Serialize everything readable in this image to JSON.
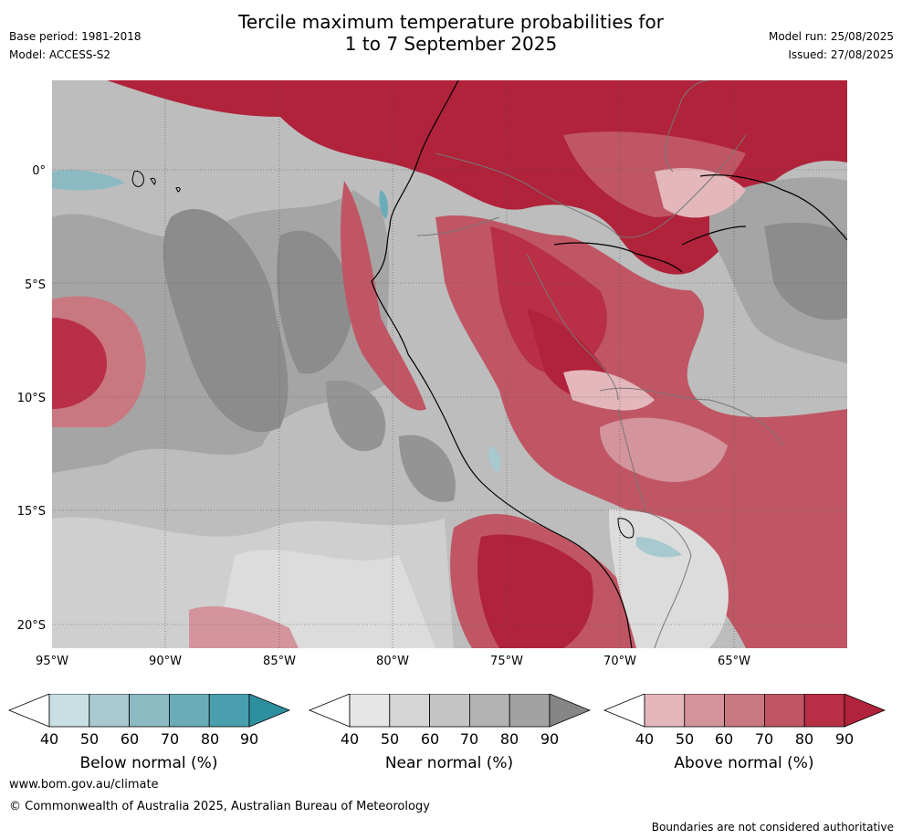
{
  "title_line1": "Tercile maximum temperature probabilities for",
  "title_line2": "1 to 7 September 2025",
  "base_period": "Base period: 1981-2018",
  "model": "Model: ACCESS-S2",
  "model_run": "Model run: 25/08/2025",
  "issued": "Issued: 27/08/2025",
  "lat_labels": [
    "0°",
    "5°S",
    "10°S",
    "15°S",
    "20°S"
  ],
  "lon_labels": [
    "95°W",
    "90°W",
    "85°W",
    "80°W",
    "75°W",
    "70°W",
    "65°W"
  ],
  "colorbars": [
    {
      "title": "Below normal (%)",
      "ticks": [
        "40",
        "50",
        "60",
        "70",
        "80",
        "90"
      ],
      "colors": [
        "#ffffff",
        "#c8e0e4",
        "#a7c9cf",
        "#8cbac3",
        "#6aadb9",
        "#4a9fae",
        "#2c8f9f"
      ]
    },
    {
      "title": "Near normal (%)",
      "ticks": [
        "40",
        "50",
        "60",
        "70",
        "80",
        "90"
      ],
      "colors": [
        "#ffffff",
        "#e6e6e6",
        "#d5d5d5",
        "#c4c4c4",
        "#b3b3b3",
        "#a2a2a2",
        "#868686"
      ]
    },
    {
      "title": "Above normal (%)",
      "ticks": [
        "40",
        "50",
        "60",
        "70",
        "80",
        "90"
      ],
      "colors": [
        "#ffffff",
        "#e3b7bc",
        "#d4949c",
        "#c97880",
        "#c05664",
        "#b82f46",
        "#b1223b"
      ]
    }
  ],
  "website": "www.bom.gov.au/climate",
  "copyright": "© Commonwealth of Australia 2025, Australian Bureau of Meteorology",
  "boundary_note": "Boundaries are not considered authoritative"
}
